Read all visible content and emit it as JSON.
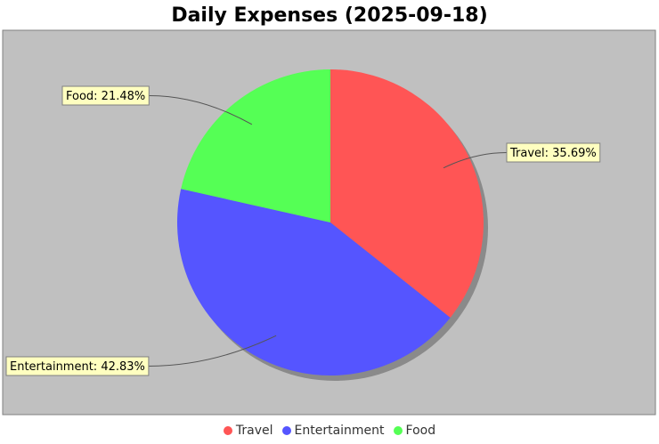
{
  "chart_data": {
    "type": "pie",
    "title": "Daily Expenses (2025-09-18)",
    "categories": [
      "Travel",
      "Entertainment",
      "Food"
    ],
    "values": [
      35.69,
      42.83,
      21.48
    ],
    "labels": [
      "Travel: 35.69%",
      "Entertainment: 42.83%",
      "Food: 21.48%"
    ],
    "colors": [
      "#ff5555",
      "#5555ff",
      "#55ff55"
    ],
    "legend_position": "bottom",
    "plot_background": "#c0c0c0"
  }
}
